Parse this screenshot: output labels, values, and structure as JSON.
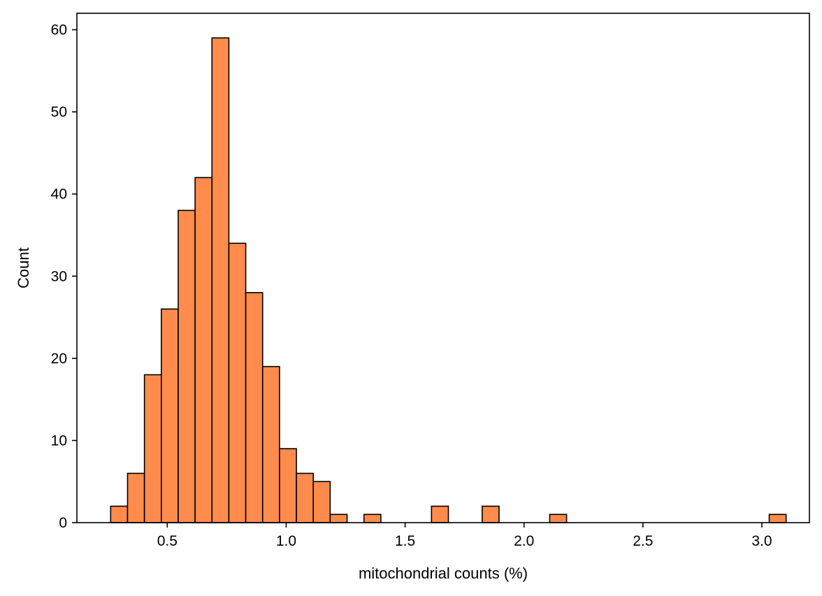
{
  "chart_data": {
    "type": "bar",
    "title": "",
    "xlabel": "mitochondrial counts (%)",
    "ylabel": "Count",
    "xlim": [
      0.12,
      3.2
    ],
    "ylim": [
      0,
      62
    ],
    "xticks": [
      0.5,
      1.0,
      1.5,
      2.0,
      2.5,
      3.0
    ],
    "xtick_labels": [
      "0.5",
      "1.0",
      "1.5",
      "2.0",
      "2.5",
      "3.0"
    ],
    "yticks": [
      0,
      10,
      20,
      30,
      40,
      50,
      60
    ],
    "ytick_labels": [
      "0",
      "10",
      "20",
      "30",
      "40",
      "50",
      "60"
    ],
    "grid": false,
    "bin_edges": [
      0.262,
      0.333,
      0.404,
      0.475,
      0.546,
      0.617,
      0.688,
      0.759,
      0.83,
      0.901,
      0.972,
      1.043,
      1.114,
      1.185,
      1.256,
      1.327,
      1.398,
      1.469,
      1.54,
      1.611,
      1.682,
      1.753,
      1.824,
      1.895,
      1.966,
      2.037,
      2.108,
      2.179,
      2.25,
      2.321,
      2.392,
      2.463,
      2.534,
      2.605,
      2.676,
      2.747,
      2.818,
      2.889,
      2.96,
      3.031,
      3.102
    ],
    "counts": [
      2,
      6,
      18,
      26,
      38,
      42,
      59,
      34,
      28,
      19,
      9,
      6,
      5,
      1,
      0,
      1,
      0,
      0,
      0,
      2,
      0,
      0,
      2,
      0,
      0,
      0,
      1,
      0,
      0,
      0,
      0,
      0,
      0,
      0,
      0,
      0,
      0,
      0,
      0,
      1
    ],
    "bar_color": "#ff8c4d",
    "edge_color": "#000000"
  }
}
